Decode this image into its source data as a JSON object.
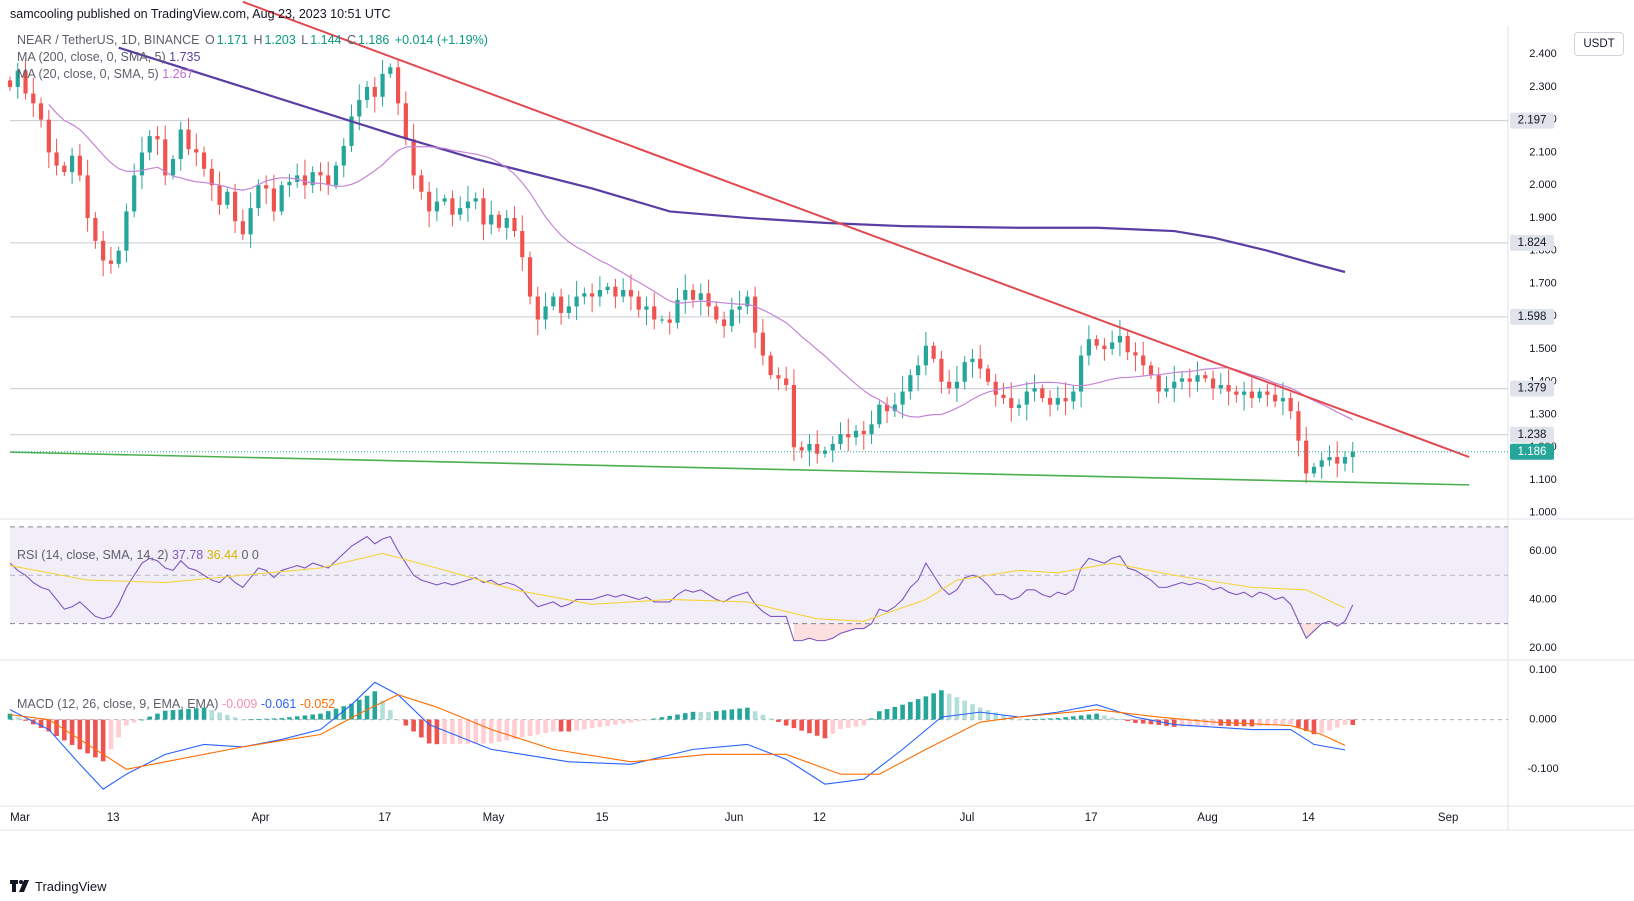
{
  "header": {
    "publisher": "samcooling published on TradingView.com, Aug 23, 2023 10:51 UTC",
    "symbol_desc": "NEAR / TetherUS, 1D, BINANCE",
    "open_label": "O",
    "open": "1.171",
    "high_label": "H",
    "high": "1.203",
    "low_label": "L",
    "low": "1.144",
    "close_label": "C",
    "close": "1.186",
    "change": "+0.014 (+1.19%)",
    "ma200_legend": "MA (200, close, 0, SMA, 5)",
    "ma200_value": "1.735",
    "ma20_legend": "MA (20, close, 0, SMA, 5)",
    "ma20_value": "1.267",
    "currency_button": "USDT"
  },
  "footer": {
    "brand": "TradingView"
  },
  "colors": {
    "up": "#26a69a",
    "down": "#ef5350",
    "ma200": "#5b3ea3",
    "ma20": "#c485d6",
    "trend_red": "#e04a50",
    "trend_green": "#4caf50",
    "rsi_line": "#7e57c2",
    "rsi_ma": "#f5d33a",
    "macd_line": "#2962ff",
    "signal_line": "#ff6d00",
    "hist_up_strong": "#26a69a",
    "hist_up_weak": "#b2dfdb",
    "hist_down_strong": "#ef5350",
    "hist_down_weak": "#ffcdd2",
    "last_price": "#26a69a"
  },
  "chart_data": [
    {
      "type": "candlestick",
      "title": "NEAR / TetherUS, 1D, BINANCE",
      "ylim": [
        0.99,
        2.48
      ],
      "y_ticks": [
        1.0,
        1.1,
        1.2,
        1.3,
        1.4,
        1.5,
        1.6,
        1.7,
        1.8,
        1.9,
        2.0,
        2.1,
        2.2,
        2.3,
        2.4
      ],
      "y_tick_labels": [
        "1.000",
        "1.100",
        "1.200",
        "1.300",
        "1.400",
        "1.500",
        "1.600",
        "1.700",
        "1.800",
        "1.900",
        "2.000",
        "2.100",
        "2.200",
        "2.300",
        "2.400"
      ],
      "x_tick_labels": [
        {
          "label": "Mar",
          "day": 0
        },
        {
          "label": "13",
          "day": 12
        },
        {
          "label": "Apr",
          "day": 31
        },
        {
          "label": "17",
          "day": 47
        },
        {
          "label": "May",
          "day": 61
        },
        {
          "label": "15",
          "day": 75
        },
        {
          "label": "Jun",
          "day": 92
        },
        {
          "label": "12",
          "day": 103
        },
        {
          "label": "Jul",
          "day": 122
        },
        {
          "label": "17",
          "day": 138
        },
        {
          "label": "Aug",
          "day": 153
        },
        {
          "label": "14",
          "day": 166
        },
        {
          "label": "Sep",
          "day": 184
        }
      ],
      "x_range_days": [
        0,
        193
      ],
      "close": [
        2.3,
        2.35,
        2.28,
        2.25,
        2.2,
        2.1,
        2.06,
        2.04,
        2.09,
        2.03,
        1.9,
        1.83,
        1.77,
        1.76,
        1.8,
        1.92,
        2.03,
        2.1,
        2.15,
        2.14,
        2.03,
        2.08,
        2.17,
        2.11,
        2.1,
        2.05,
        2.0,
        1.94,
        1.98,
        1.89,
        1.85,
        1.93,
        2.0,
        1.99,
        1.92,
        2.0,
        2.01,
        2.03,
        2.0,
        2.04,
        2.03,
        2.0,
        2.06,
        2.12,
        2.21,
        2.26,
        2.3,
        2.27,
        2.34,
        2.36,
        2.25,
        2.14,
        2.03,
        1.98,
        1.92,
        1.95,
        1.96,
        1.91,
        1.93,
        1.95,
        1.96,
        1.88,
        1.91,
        1.87,
        1.9,
        1.86,
        1.78,
        1.66,
        1.59,
        1.63,
        1.66,
        1.61,
        1.63,
        1.66,
        1.67,
        1.66,
        1.68,
        1.69,
        1.66,
        1.68,
        1.66,
        1.62,
        1.63,
        1.59,
        1.59,
        1.58,
        1.65,
        1.68,
        1.65,
        1.67,
        1.63,
        1.59,
        1.57,
        1.62,
        1.63,
        1.66,
        1.55,
        1.48,
        1.42,
        1.41,
        1.39,
        1.2,
        1.19,
        1.21,
        1.18,
        1.19,
        1.21,
        1.24,
        1.23,
        1.25,
        1.24,
        1.27,
        1.33,
        1.31,
        1.33,
        1.37,
        1.42,
        1.45,
        1.51,
        1.47,
        1.4,
        1.38,
        1.4,
        1.46,
        1.47,
        1.44,
        1.4,
        1.36,
        1.35,
        1.32,
        1.33,
        1.37,
        1.38,
        1.35,
        1.33,
        1.35,
        1.34,
        1.37,
        1.48,
        1.53,
        1.51,
        1.5,
        1.52,
        1.54,
        1.49,
        1.48,
        1.45,
        1.42,
        1.37,
        1.38,
        1.4,
        1.41,
        1.4,
        1.42,
        1.41,
        1.38,
        1.39,
        1.37,
        1.36,
        1.37,
        1.35,
        1.37,
        1.36,
        1.34,
        1.35,
        1.31,
        1.22,
        1.12,
        1.14,
        1.16,
        1.17,
        1.15,
        1.17,
        1.186
      ],
      "series": [
        {
          "name": "MA (200, close, 0, SMA, 5)",
          "last": 1.735,
          "points": [
            [
              14,
              2.42
            ],
            [
              30,
              2.3
            ],
            [
              50,
              2.15
            ],
            [
              60,
              2.08
            ],
            [
              75,
              1.99
            ],
            [
              85,
              1.92
            ],
            [
              95,
              1.9
            ],
            [
              105,
              1.885
            ],
            [
              115,
              1.875
            ],
            [
              130,
              1.87
            ],
            [
              140,
              1.87
            ],
            [
              150,
              1.86
            ],
            [
              155,
              1.84
            ],
            [
              162,
              1.8
            ],
            [
              168,
              1.76
            ],
            [
              172,
              1.735
            ]
          ]
        },
        {
          "name": "MA (20, close, 0, SMA, 5)",
          "last": 1.267
        }
      ],
      "trendlines": [
        {
          "name": "falling resistance",
          "from": [
            30,
            2.56
          ],
          "to": [
            188,
            1.17
          ]
        },
        {
          "name": "support",
          "from": [
            0,
            1.185
          ],
          "to": [
            188,
            1.085
          ]
        }
      ],
      "horizontal_levels": [
        2.197,
        1.824,
        1.598,
        1.379,
        1.238
      ],
      "price_labels": [
        "2.197",
        "1.824",
        "1.598",
        "1.379",
        "1.238",
        "1.186"
      ]
    },
    {
      "type": "line",
      "title": "RSI (14, close, SMA, 14, 2)",
      "legend": "RSI (14, close, SMA, 14, 2)",
      "rsi_value": "37.78",
      "rsi_ma_value": "36.44",
      "extra_values": [
        "0",
        "0"
      ],
      "ylim": [
        15,
        72
      ],
      "y_ticks": [
        20,
        40,
        60
      ],
      "y_tick_labels": [
        "20.00",
        "40.00",
        "60.00"
      ],
      "bands": [
        30,
        50,
        70
      ],
      "rsi": [
        55,
        52,
        50,
        47,
        45,
        44,
        40,
        36,
        37,
        39,
        36,
        33,
        32,
        33,
        38,
        45,
        50,
        55,
        57,
        56,
        53,
        52,
        56,
        53,
        52,
        50,
        48,
        47,
        50,
        47,
        45,
        49,
        53,
        52,
        49,
        52,
        53,
        54,
        53,
        55,
        54,
        53,
        56,
        59,
        62,
        64,
        66,
        63,
        65,
        66,
        60,
        55,
        50,
        48,
        47,
        46,
        47,
        46,
        47,
        48,
        49,
        47,
        48,
        46,
        47,
        46,
        44,
        40,
        37,
        38,
        39,
        37,
        38,
        40,
        40,
        40,
        41,
        42,
        41,
        42,
        41,
        40,
        41,
        39,
        39,
        39,
        42,
        44,
        43,
        44,
        42,
        40,
        39,
        41,
        42,
        43,
        38,
        35,
        33,
        33,
        33,
        23,
        23,
        24,
        23,
        23,
        24,
        26,
        27,
        28,
        28,
        30,
        36,
        35,
        37,
        40,
        45,
        48,
        55,
        50,
        45,
        42,
        44,
        49,
        50,
        49,
        46,
        42,
        42,
        40,
        41,
        44,
        44,
        42,
        41,
        43,
        42,
        44,
        53,
        57,
        56,
        55,
        57,
        58,
        53,
        52,
        50,
        48,
        45,
        45,
        46,
        47,
        46,
        47,
        46,
        44,
        45,
        43,
        42,
        43,
        41,
        43,
        42,
        40,
        41,
        38,
        31,
        24,
        27,
        30,
        31,
        29,
        31,
        37.78
      ],
      "rsi_ma_points": [
        [
          0,
          54
        ],
        [
          10,
          48
        ],
        [
          20,
          47
        ],
        [
          30,
          50
        ],
        [
          40,
          53
        ],
        [
          48,
          59
        ],
        [
          55,
          53
        ],
        [
          65,
          44
        ],
        [
          75,
          38
        ],
        [
          85,
          40
        ],
        [
          95,
          39
        ],
        [
          100,
          35
        ],
        [
          104,
          32
        ],
        [
          110,
          31
        ],
        [
          118,
          40
        ],
        [
          122,
          48
        ],
        [
          130,
          52
        ],
        [
          135,
          51
        ],
        [
          142,
          55
        ],
        [
          150,
          50
        ],
        [
          160,
          45
        ],
        [
          167,
          44
        ],
        [
          172,
          36.44
        ]
      ]
    },
    {
      "type": "bar+line",
      "title": "MACD (12, 26, close, 9, EMA, EMA)",
      "legend": "MACD (12, 26, close, 9, EMA, EMA)",
      "hist_value": "-0.009",
      "macd_value": "-0.061",
      "signal_value": "-0.052",
      "ylim": [
        -0.17,
        0.12
      ],
      "y_ticks": [
        -0.1,
        0.0,
        0.1
      ],
      "y_tick_labels": [
        "-0.100",
        "0.000",
        "0.100"
      ],
      "macd_points": [
        [
          0,
          0.02
        ],
        [
          5,
          -0.02
        ],
        [
          9,
          -0.09
        ],
        [
          12,
          -0.14
        ],
        [
          15,
          -0.11
        ],
        [
          20,
          -0.07
        ],
        [
          25,
          -0.05
        ],
        [
          30,
          -0.055
        ],
        [
          35,
          -0.04
        ],
        [
          40,
          -0.02
        ],
        [
          44,
          0.03
        ],
        [
          47,
          0.075
        ],
        [
          50,
          0.05
        ],
        [
          54,
          -0.01
        ],
        [
          58,
          -0.035
        ],
        [
          62,
          -0.06
        ],
        [
          66,
          -0.07
        ],
        [
          72,
          -0.085
        ],
        [
          80,
          -0.09
        ],
        [
          88,
          -0.06
        ],
        [
          95,
          -0.05
        ],
        [
          100,
          -0.08
        ],
        [
          105,
          -0.13
        ],
        [
          110,
          -0.12
        ],
        [
          115,
          -0.06
        ],
        [
          120,
          0.005
        ],
        [
          125,
          0.015
        ],
        [
          130,
          0.005
        ],
        [
          135,
          0.015
        ],
        [
          140,
          0.03
        ],
        [
          145,
          0.005
        ],
        [
          150,
          -0.01
        ],
        [
          155,
          -0.015
        ],
        [
          160,
          -0.02
        ],
        [
          165,
          -0.02
        ],
        [
          168,
          -0.05
        ],
        [
          172,
          -0.061
        ]
      ],
      "signal_points": [
        [
          0,
          0.01
        ],
        [
          5,
          0.0
        ],
        [
          10,
          -0.05
        ],
        [
          15,
          -0.1
        ],
        [
          20,
          -0.085
        ],
        [
          30,
          -0.055
        ],
        [
          40,
          -0.03
        ],
        [
          46,
          0.02
        ],
        [
          50,
          0.05
        ],
        [
          55,
          0.025
        ],
        [
          62,
          -0.02
        ],
        [
          70,
          -0.06
        ],
        [
          80,
          -0.085
        ],
        [
          90,
          -0.07
        ],
        [
          100,
          -0.07
        ],
        [
          107,
          -0.11
        ],
        [
          112,
          -0.11
        ],
        [
          118,
          -0.06
        ],
        [
          125,
          -0.005
        ],
        [
          130,
          0.005
        ],
        [
          140,
          0.02
        ],
        [
          148,
          0.005
        ],
        [
          155,
          -0.005
        ],
        [
          165,
          -0.012
        ],
        [
          169,
          -0.03
        ],
        [
          172,
          -0.052
        ]
      ]
    }
  ]
}
